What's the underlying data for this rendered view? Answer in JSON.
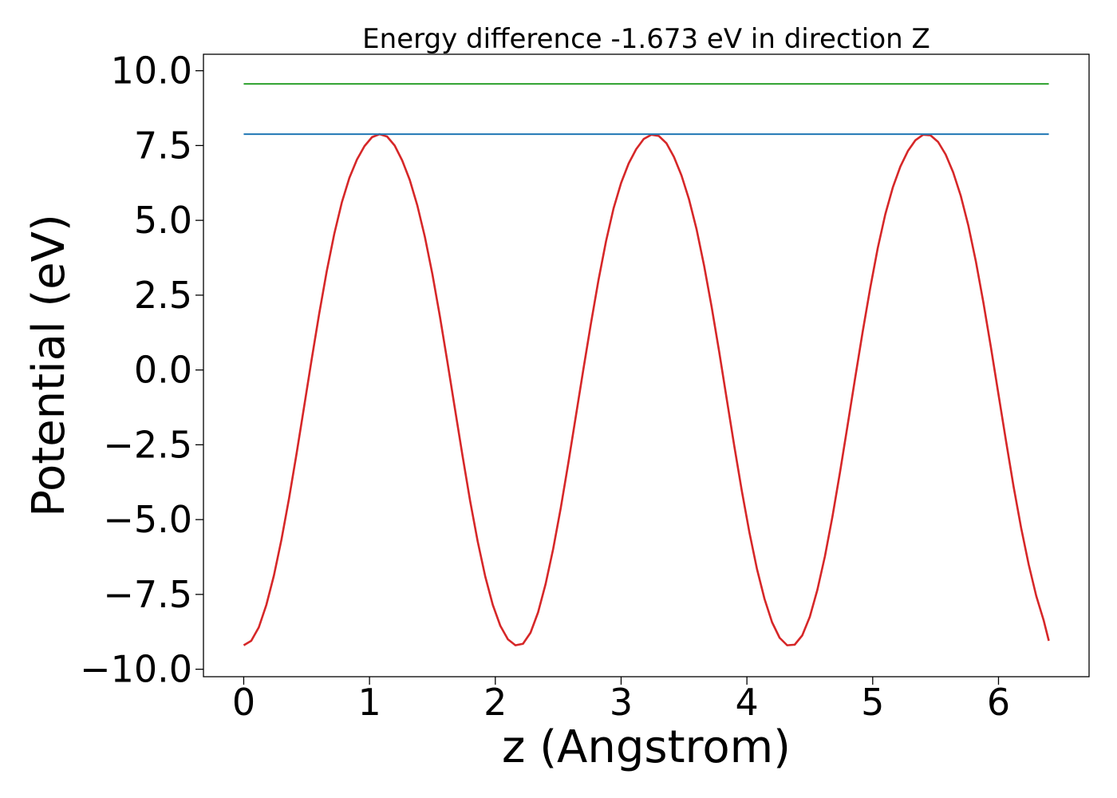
{
  "chart_data": {
    "type": "line",
    "title": "Energy difference -1.673 eV in direction Z",
    "xlabel": "z (Angstrom)",
    "ylabel": "Potential (eV)",
    "xlim": [
      -0.32,
      6.72
    ],
    "ylim": [
      -10.25,
      10.55
    ],
    "xticks": [
      0,
      1,
      2,
      3,
      4,
      5,
      6
    ],
    "xtick_labels": [
      "0",
      "1",
      "2",
      "3",
      "4",
      "5",
      "6"
    ],
    "yticks": [
      -10,
      -7.5,
      -5,
      -2.5,
      0,
      2.5,
      5,
      7.5,
      10
    ],
    "ytick_labels": [
      "−10.0",
      "−7.5",
      "−5.0",
      "−2.5",
      "0.0",
      "2.5",
      "5.0",
      "7.5",
      "10.0"
    ],
    "grid": false,
    "series": [
      {
        "color": "#d62728",
        "x": [
          0.0,
          0.06,
          0.12,
          0.18,
          0.24,
          0.3,
          0.36,
          0.42,
          0.48,
          0.54,
          0.6,
          0.66,
          0.72,
          0.78,
          0.84,
          0.9,
          0.96,
          1.02,
          1.08,
          1.14,
          1.2,
          1.26,
          1.32,
          1.38,
          1.44,
          1.5,
          1.56,
          1.62,
          1.68,
          1.74,
          1.8,
          1.86,
          1.92,
          1.98,
          2.04,
          2.1,
          2.16,
          2.22,
          2.28,
          2.34,
          2.4,
          2.46,
          2.52,
          2.58,
          2.64,
          2.7,
          2.76,
          2.82,
          2.88,
          2.94,
          3.0,
          3.06,
          3.12,
          3.18,
          3.24,
          3.3,
          3.36,
          3.42,
          3.48,
          3.54,
          3.6,
          3.66,
          3.72,
          3.78,
          3.84,
          3.9,
          3.96,
          4.02,
          4.08,
          4.14,
          4.2,
          4.26,
          4.32,
          4.38,
          4.44,
          4.5,
          4.56,
          4.62,
          4.68,
          4.74,
          4.8,
          4.86,
          4.92,
          4.98,
          5.04,
          5.1,
          5.16,
          5.22,
          5.28,
          5.34,
          5.4,
          5.46,
          5.52,
          5.58,
          5.64,
          5.7,
          5.76,
          5.82,
          5.88,
          5.94,
          6.0,
          6.06,
          6.12,
          6.18,
          6.24,
          6.3,
          6.36,
          6.4
        ],
        "y": [
          -9.2,
          -9.05,
          -8.6,
          -7.85,
          -6.87,
          -5.67,
          -4.3,
          -2.8,
          -1.23,
          0.35,
          1.88,
          3.3,
          4.55,
          5.6,
          6.42,
          7.03,
          7.48,
          7.78,
          7.88,
          7.8,
          7.5,
          7.0,
          6.35,
          5.5,
          4.45,
          3.2,
          1.78,
          0.25,
          -1.32,
          -2.88,
          -4.38,
          -5.73,
          -6.9,
          -7.85,
          -8.55,
          -9.0,
          -9.2,
          -9.15,
          -8.78,
          -8.1,
          -7.15,
          -5.98,
          -4.62,
          -3.12,
          -1.55,
          0.02,
          1.55,
          3.0,
          4.3,
          5.4,
          6.25,
          6.9,
          7.38,
          7.72,
          7.86,
          7.82,
          7.58,
          7.12,
          6.5,
          5.7,
          4.7,
          3.48,
          2.1,
          0.6,
          -0.98,
          -2.55,
          -4.05,
          -5.43,
          -6.65,
          -7.65,
          -8.43,
          -8.95,
          -9.2,
          -9.18,
          -8.87,
          -8.25,
          -7.35,
          -6.23,
          -4.9,
          -3.42,
          -1.86,
          -0.28,
          1.27,
          2.73,
          4.07,
          5.2,
          6.1,
          6.8,
          7.32,
          7.68,
          7.86,
          7.84,
          7.62,
          7.2,
          6.6,
          5.82,
          4.83,
          3.63,
          2.25,
          0.75,
          -0.82,
          -2.38,
          -3.9,
          -5.28,
          -6.5,
          -7.55,
          -8.38,
          -9.05
        ]
      },
      {
        "color": "#1f77b4",
        "x": [
          0.0,
          6.4
        ],
        "y": [
          7.88,
          7.88
        ]
      },
      {
        "color": "#2ca02c",
        "x": [
          0.0,
          6.4
        ],
        "y": [
          9.56,
          9.56
        ]
      }
    ]
  }
}
